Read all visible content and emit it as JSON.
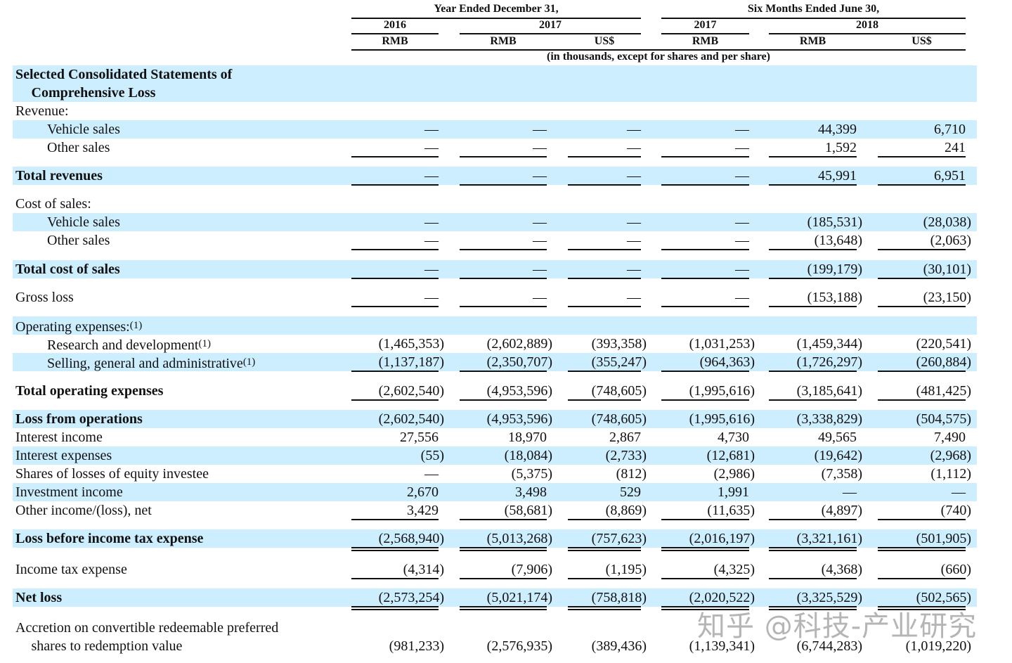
{
  "header": {
    "group_year": "Year Ended December 31,",
    "group_six": "Six Months Ended June 30,",
    "years": [
      "2016",
      "2017",
      "2017",
      "2018"
    ],
    "currencies": [
      "RMB",
      "RMB",
      "US$",
      "RMB",
      "RMB",
      "US$"
    ],
    "units_note": "(in thousands, except for shares and per share)"
  },
  "rows": [
    {
      "label": "Selected Consolidated Statements of",
      "bold": true,
      "values": []
    },
    {
      "label": "Comprehensive Loss",
      "bold": true,
      "indent": 1,
      "values": []
    },
    {
      "label": "Revenue:",
      "values": []
    },
    {
      "label": "Vehicle sales",
      "indent": 2,
      "values": [
        "—",
        "—",
        "—",
        "—",
        "44,399",
        "6,710"
      ]
    },
    {
      "label": "Other sales",
      "indent": 2,
      "values": [
        "—",
        "—",
        "—",
        "—",
        "1,592",
        "241"
      ]
    },
    {
      "label": "Total revenues",
      "bold": true,
      "values": [
        "—",
        "—",
        "—",
        "—",
        "45,991",
        "6,951"
      ]
    },
    {
      "label": "Cost of sales:",
      "values": []
    },
    {
      "label": "Vehicle sales",
      "indent": 2,
      "values": [
        "—",
        "—",
        "—",
        "—",
        "(185,531)",
        "(28,038)"
      ]
    },
    {
      "label": "Other sales",
      "indent": 2,
      "values": [
        "—",
        "—",
        "—",
        "—",
        "(13,648)",
        "(2,063)"
      ]
    },
    {
      "label": "Total cost of sales",
      "bold": true,
      "values": [
        "—",
        "—",
        "—",
        "—",
        "(199,179)",
        "(30,101)"
      ]
    },
    {
      "label": "Gross loss",
      "values": [
        "—",
        "—",
        "—",
        "—",
        "(153,188)",
        "(23,150)"
      ]
    },
    {
      "label": "Operating expenses:",
      "note": "(1)",
      "values": []
    },
    {
      "label": "Research and development",
      "note": "(1)",
      "indent": 2,
      "values": [
        "(1,465,353)",
        "(2,602,889)",
        "(393,358)",
        "(1,031,253)",
        "(1,459,344)",
        "(220,541)"
      ]
    },
    {
      "label": "Selling, general and administrative",
      "note": "(1)",
      "indent": 2,
      "values": [
        "(1,137,187)",
        "(2,350,707)",
        "(355,247)",
        "(964,363)",
        "(1,726,297)",
        "(260,884)"
      ]
    },
    {
      "label": "Total operating expenses",
      "bold": true,
      "values": [
        "(2,602,540)",
        "(4,953,596)",
        "(748,605)",
        "(1,995,616)",
        "(3,185,641)",
        "(481,425)"
      ]
    },
    {
      "label": "Loss from operations",
      "bold": true,
      "values": [
        "(2,602,540)",
        "(4,953,596)",
        "(748,605)",
        "(1,995,616)",
        "(3,338,829)",
        "(504,575)"
      ]
    },
    {
      "label": "Interest income",
      "values": [
        "27,556",
        "18,970",
        "2,867",
        "4,730",
        "49,565",
        "7,490"
      ]
    },
    {
      "label": "Interest expenses",
      "values": [
        "(55)",
        "(18,084)",
        "(2,733)",
        "(12,681)",
        "(19,642)",
        "(2,968)"
      ]
    },
    {
      "label": "Shares of losses of equity investee",
      "values": [
        "—",
        "(5,375)",
        "(812)",
        "(2,986)",
        "(7,358)",
        "(1,112)"
      ]
    },
    {
      "label": "Investment income",
      "values": [
        "2,670",
        "3,498",
        "529",
        "1,991",
        "—",
        "—"
      ]
    },
    {
      "label": "Other income/(loss), net",
      "values": [
        "3,429",
        "(58,681)",
        "(8,869)",
        "(11,635)",
        "(4,897)",
        "(740)"
      ]
    },
    {
      "label": "Loss before income tax expense",
      "bold": true,
      "values": [
        "(2,568,940)",
        "(5,013,268)",
        "(757,623)",
        "(2,016,197)",
        "(3,321,161)",
        "(501,905)"
      ]
    },
    {
      "label": "Income tax expense",
      "values": [
        "(4,314)",
        "(7,906)",
        "(1,195)",
        "(4,325)",
        "(4,368)",
        "(660)"
      ]
    },
    {
      "label": "Net loss",
      "bold": true,
      "values": [
        "(2,573,254)",
        "(5,021,174)",
        "(758,818)",
        "(2,020,522)",
        "(3,325,529)",
        "(502,565)"
      ]
    },
    {
      "label": "Accretion on convertible redeemable preferred",
      "values": []
    },
    {
      "label": "shares to redemption value",
      "indent": 1,
      "values": [
        "(981,233)",
        "(2,576,935)",
        "(389,436)",
        "(1,139,341)",
        "(6,744,283)",
        "(1,019,220)"
      ]
    }
  ],
  "colors": {
    "band": "#cdeeff",
    "text": "#111111"
  },
  "watermark": "知乎 @科技-产业研究"
}
